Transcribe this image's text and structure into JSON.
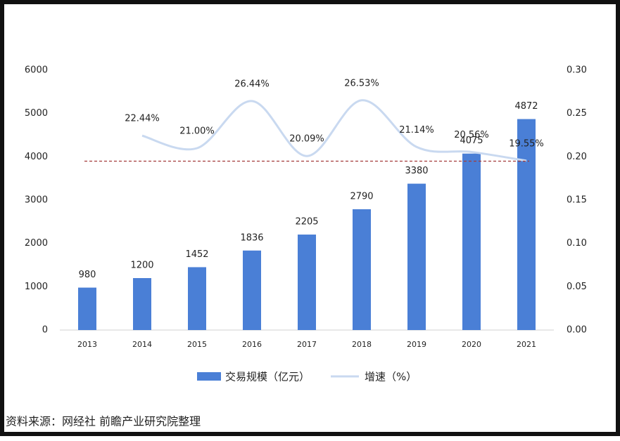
{
  "chart_data": {
    "type": "bar_line",
    "categories": [
      "2013",
      "2014",
      "2015",
      "2016",
      "2017",
      "2018",
      "2019",
      "2020",
      "2021"
    ],
    "series": [
      {
        "name": "交易规模（亿元）",
        "type": "bar",
        "color": "#4a7fd6",
        "values": [
          980,
          1200,
          1452,
          1836,
          2205,
          2790,
          3380,
          4075,
          4872
        ]
      },
      {
        "name": "增速（%）",
        "type": "line",
        "axis": "y2",
        "color": "#c9d9f0",
        "values": [
          null,
          0.2244,
          0.21,
          0.2644,
          0.2009,
          0.2653,
          0.2114,
          0.2056,
          0.1955
        ],
        "value_labels": [
          null,
          "22.44%",
          "21.00%",
          "26.44%",
          "20.09%",
          "26.53%",
          "21.14%",
          "20.56%",
          "19.55%"
        ]
      }
    ],
    "ylim": [
      0,
      6000
    ],
    "yticks": [
      0,
      1000,
      2000,
      3000,
      4000,
      5000,
      6000
    ],
    "y2lim": [
      0,
      0.3
    ],
    "y2ticks": [
      {
        "value": 0,
        "label": "0.00"
      },
      {
        "value": 0.05,
        "label": "0.05"
      },
      {
        "value": 0.1,
        "label": "0.10"
      },
      {
        "value": 0.15,
        "label": "0.15"
      },
      {
        "value": 0.2,
        "label": "0.20"
      },
      {
        "value": 0.25,
        "label": "0.25"
      },
      {
        "value": 0.3,
        "label": "0.30"
      }
    ],
    "hline": {
      "value": 0.195,
      "axis": "y2",
      "color": "#a33a3a"
    },
    "source": "资料来源：网经社 前瞻产业研究院整理"
  }
}
